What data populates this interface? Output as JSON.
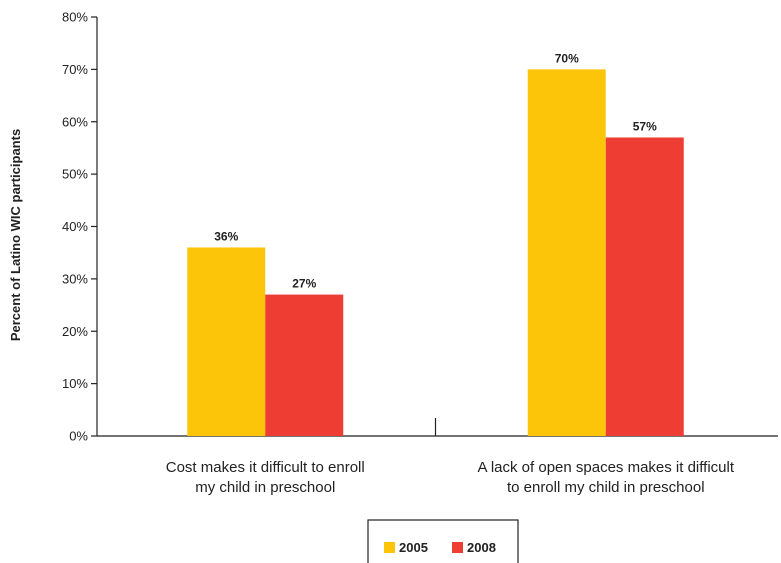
{
  "chart_data": {
    "type": "bar",
    "title": "",
    "xlabel": "",
    "ylabel": "Percent of Latino WIC participants",
    "ylim": [
      0,
      80
    ],
    "yticks": [
      0,
      10,
      20,
      30,
      40,
      50,
      60,
      70,
      80
    ],
    "ytick_labels": [
      "0%",
      "10%",
      "20%",
      "30%",
      "40%",
      "50%",
      "60%",
      "70%",
      "80%"
    ],
    "categories": [
      [
        "Cost makes it difficult to enroll",
        "my child in preschool"
      ],
      [
        "A lack of open spaces makes it difficult",
        "to enroll my child in preschool"
      ]
    ],
    "series": [
      {
        "name": "2005",
        "color": "#FCC50A",
        "values": [
          36,
          70
        ],
        "labels": [
          "36%",
          "70%"
        ]
      },
      {
        "name": "2008",
        "color": "#EE3D33",
        "values": [
          27,
          57
        ],
        "labels": [
          "27%",
          "57%"
        ]
      }
    ],
    "grid": false,
    "legend": "bottom"
  }
}
